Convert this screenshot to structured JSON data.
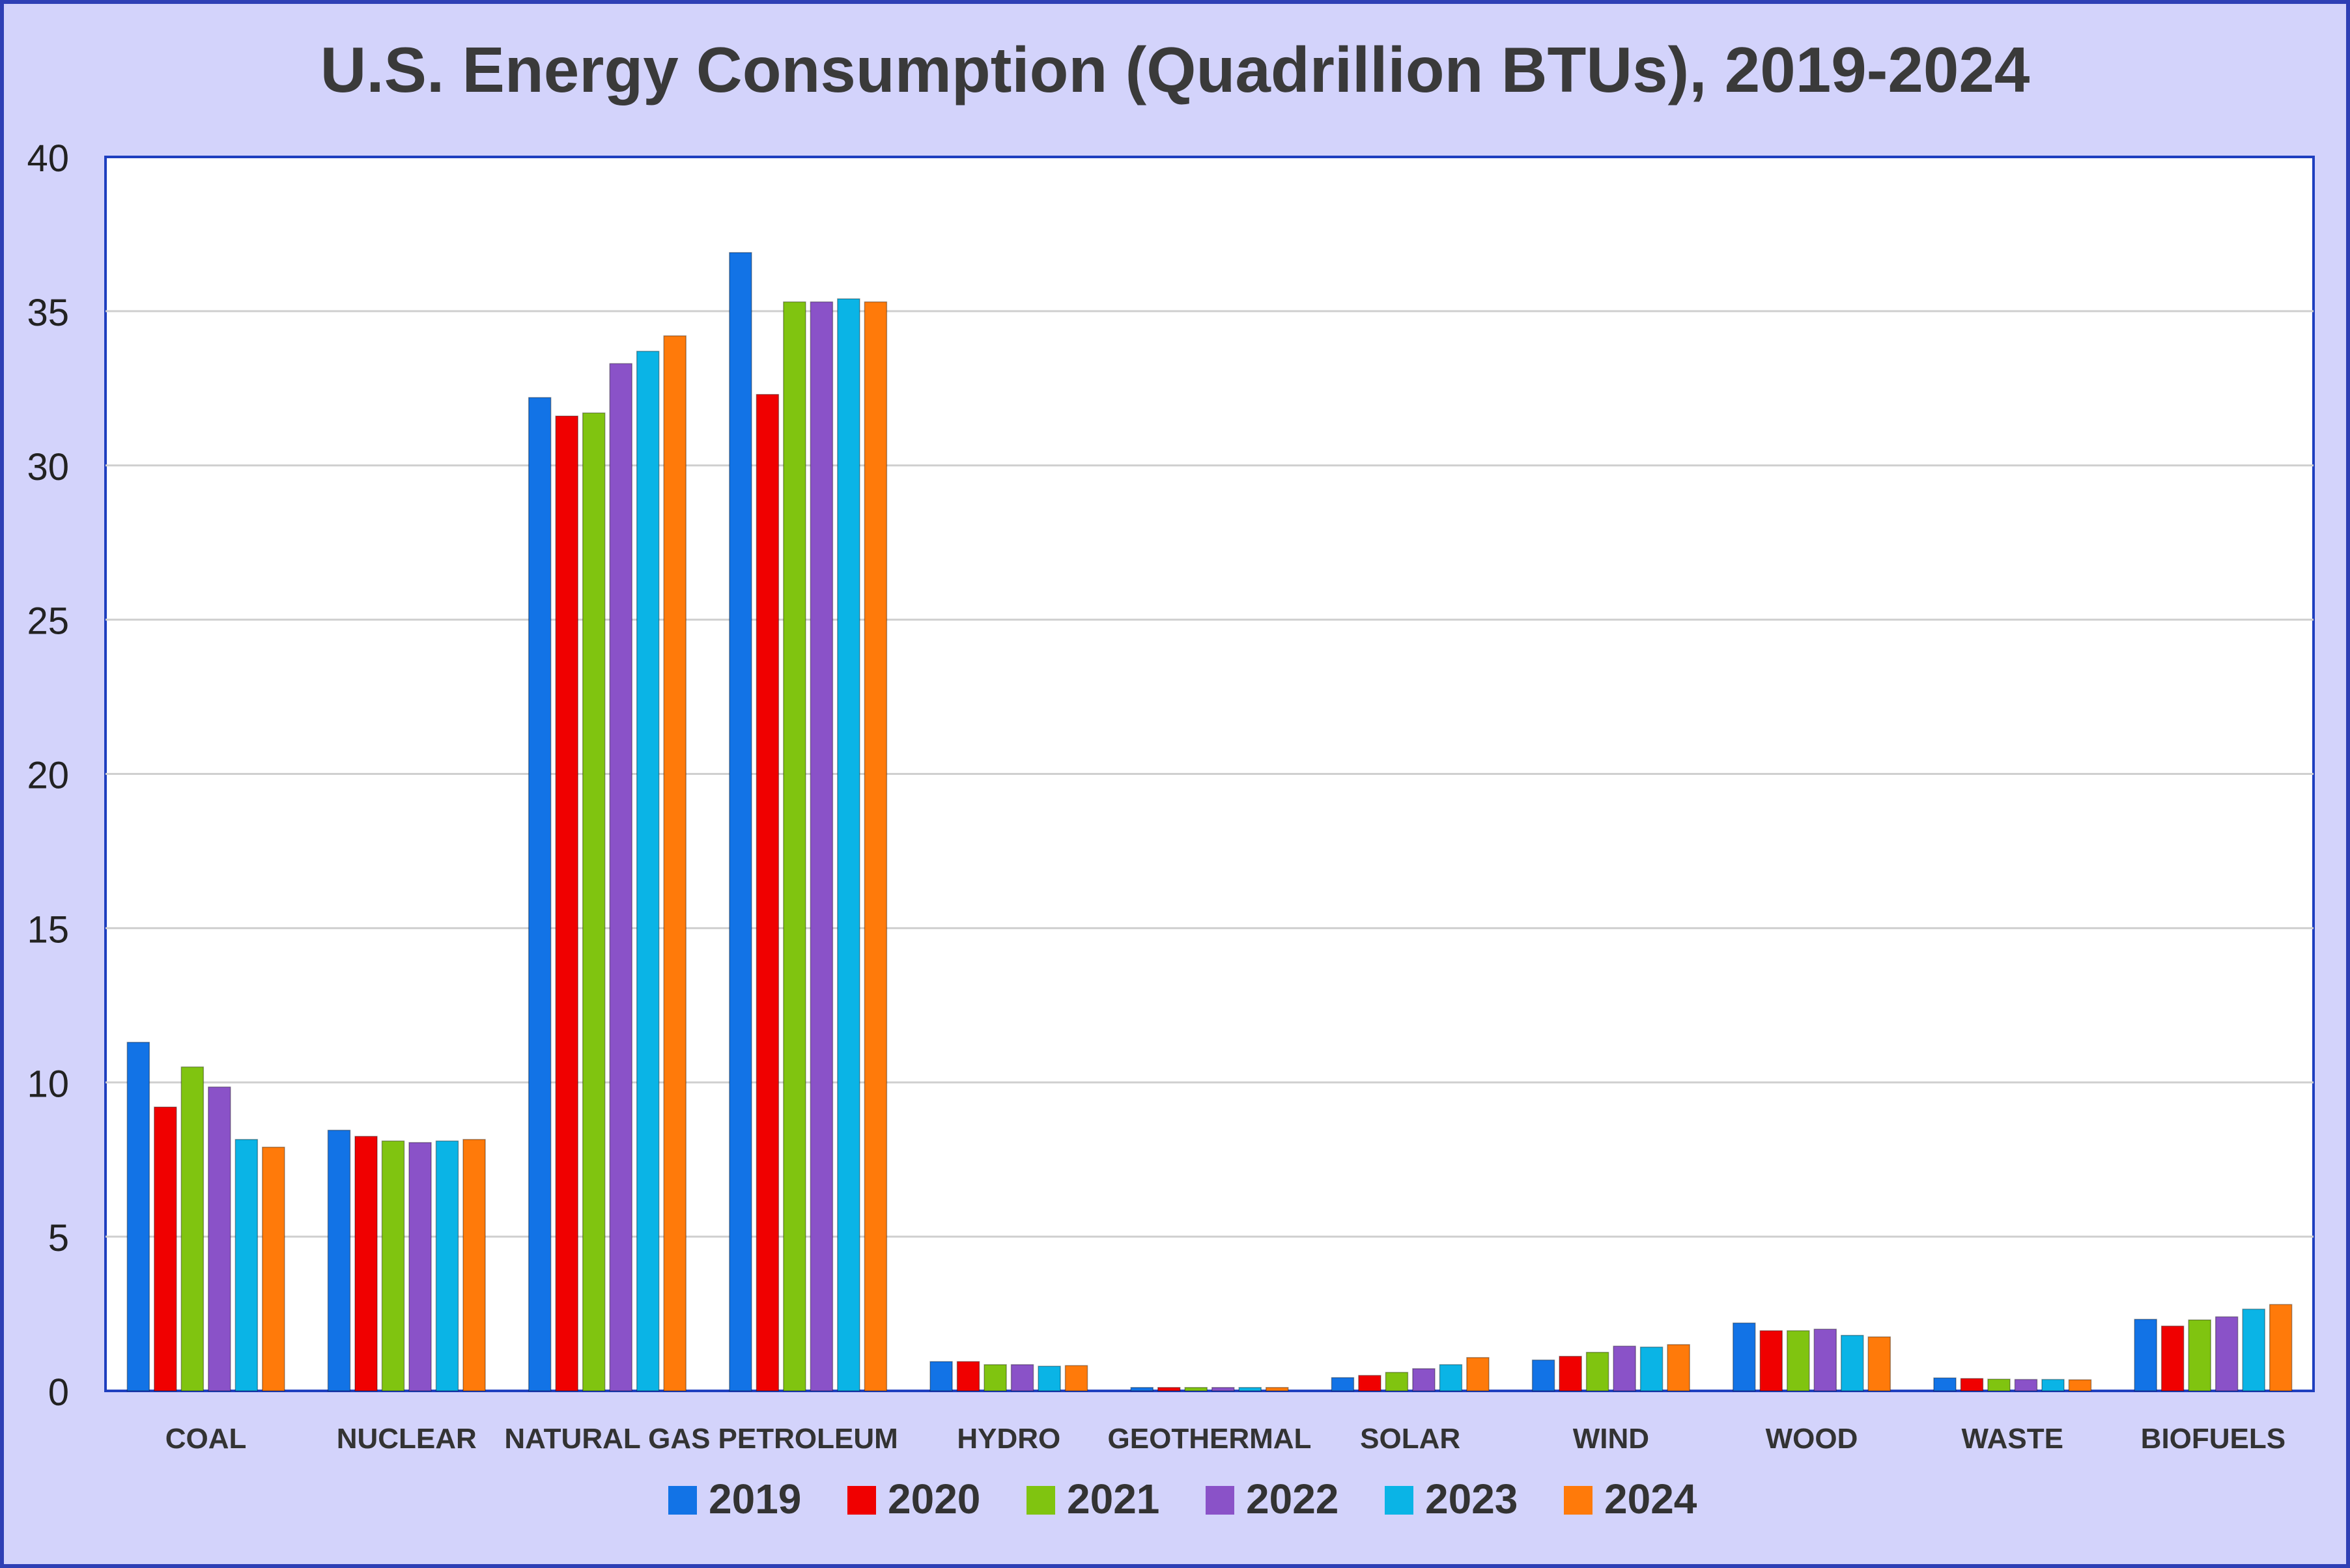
{
  "chart_data": {
    "type": "bar",
    "title": "U.S. Energy Consumption (Quadrillion BTUs), 2019-2024",
    "xlabel": "",
    "ylabel": "",
    "ylim": [
      0,
      40
    ],
    "yticks": [
      "0",
      "5",
      "10",
      "15",
      "20",
      "25",
      "30",
      "35",
      "40"
    ],
    "grid": true,
    "legend_position": "bottom",
    "categories": [
      "COAL",
      "NUCLEAR",
      "NATURAL GAS",
      "PETROLEUM",
      "HYDRO",
      "GEOTHERMAL",
      "SOLAR",
      "WIND",
      "WOOD",
      "WASTE",
      "BIOFUELS"
    ],
    "series": [
      {
        "name": "2019",
        "color": "#1273e6",
        "values": [
          11.3,
          8.45,
          32.2,
          36.9,
          0.95,
          0.11,
          0.43,
          1.0,
          2.2,
          0.42,
          2.32
        ]
      },
      {
        "name": "2020",
        "color": "#f00000",
        "values": [
          9.2,
          8.25,
          31.6,
          32.3,
          0.95,
          0.11,
          0.5,
          1.12,
          1.95,
          0.4,
          2.1
        ]
      },
      {
        "name": "2021",
        "color": "#80c410",
        "values": [
          10.5,
          8.1,
          31.7,
          35.3,
          0.85,
          0.11,
          0.6,
          1.25,
          1.95,
          0.38,
          2.3
        ]
      },
      {
        "name": "2022",
        "color": "#8a52c8",
        "values": [
          9.85,
          8.05,
          33.3,
          35.3,
          0.85,
          0.11,
          0.72,
          1.45,
          2.0,
          0.37,
          2.4
        ]
      },
      {
        "name": "2023",
        "color": "#0ab4e6",
        "values": [
          8.15,
          8.1,
          33.7,
          35.4,
          0.8,
          0.11,
          0.85,
          1.42,
          1.8,
          0.37,
          2.65
        ]
      },
      {
        "name": "2024",
        "color": "#ff7a0a",
        "values": [
          7.9,
          8.15,
          34.2,
          35.3,
          0.82,
          0.11,
          1.08,
          1.5,
          1.75,
          0.36,
          2.8
        ]
      }
    ]
  }
}
